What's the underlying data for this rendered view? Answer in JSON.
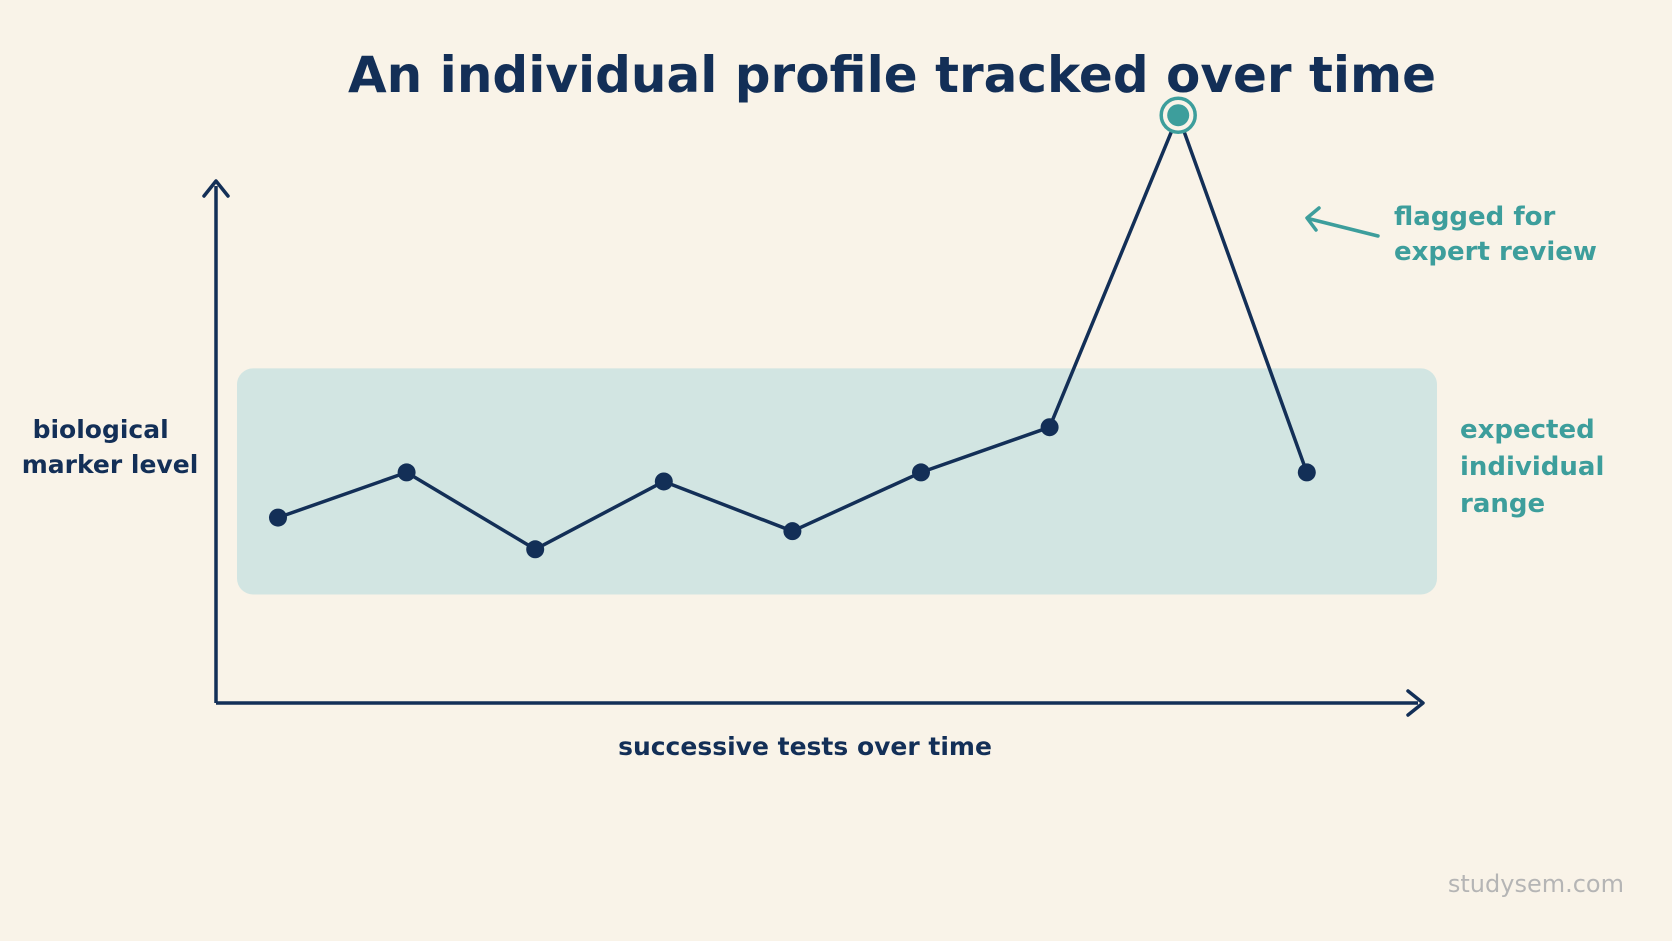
{
  "chart_data": {
    "type": "line",
    "title": "An individual profile tracked over time",
    "xlabel": "successive tests over time",
    "ylabel": [
      "biological",
      "marker level"
    ],
    "x": [
      1,
      2,
      3,
      4,
      5,
      6,
      7,
      8,
      9
    ],
    "series": [
      {
        "values": [
          41,
          51,
          34,
          49,
          38,
          51,
          61,
          130,
          51
        ]
      }
    ],
    "ylim": [
      0,
      140
    ],
    "band": {
      "range": [
        24,
        74
      ],
      "label": [
        "expected",
        "individual",
        "range"
      ]
    },
    "annotation": {
      "point_index": 7,
      "lines": [
        "flagged for",
        "expert review"
      ]
    },
    "grid": false,
    "colors": {
      "background": "#f9f3e8",
      "line": "#132f57",
      "band": "#d2e5e2",
      "accent": "#3d9e9c"
    }
  },
  "watermark": "studysem.com"
}
